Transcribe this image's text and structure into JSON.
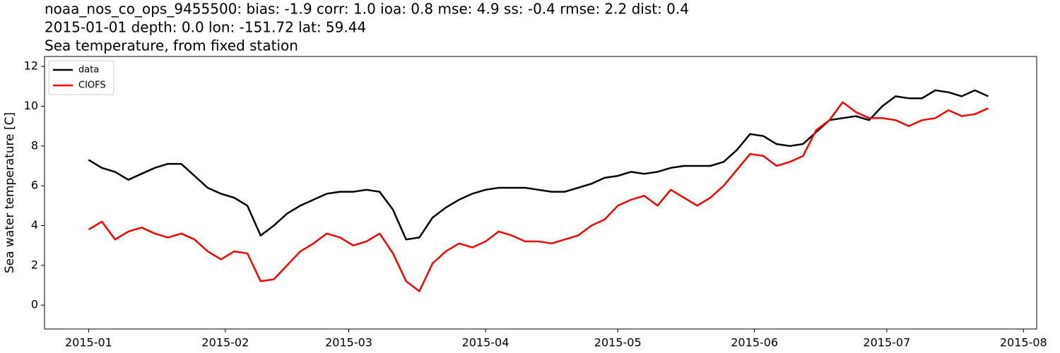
{
  "chart_data": {
    "type": "line",
    "title": "noaa_nos_co_ops_9455500: bias: -1.9  corr: 1.0  ioa: 0.8  mse: 4.9  ss: -0.4  rmse: 2.2  dist: 0.4",
    "subtitle": "2015-01-01 depth: 0.0 lon: -151.72 lat: 59.44",
    "subtitle2": "Sea temperature, from fixed station",
    "ylabel": "Sea water temperature [C]",
    "x": [
      "2015-01-01",
      "2015-01-04",
      "2015-01-07",
      "2015-01-10",
      "2015-01-13",
      "2015-01-16",
      "2015-01-19",
      "2015-01-22",
      "2015-01-25",
      "2015-01-28",
      "2015-01-31",
      "2015-02-03",
      "2015-02-06",
      "2015-02-09",
      "2015-02-12",
      "2015-02-15",
      "2015-02-18",
      "2015-02-21",
      "2015-02-24",
      "2015-02-27",
      "2015-03-02",
      "2015-03-05",
      "2015-03-08",
      "2015-03-11",
      "2015-03-14",
      "2015-03-17",
      "2015-03-20",
      "2015-03-23",
      "2015-03-26",
      "2015-03-29",
      "2015-04-01",
      "2015-04-04",
      "2015-04-07",
      "2015-04-10",
      "2015-04-13",
      "2015-04-16",
      "2015-04-19",
      "2015-04-22",
      "2015-04-25",
      "2015-04-28",
      "2015-05-01",
      "2015-05-04",
      "2015-05-07",
      "2015-05-10",
      "2015-05-13",
      "2015-05-16",
      "2015-05-19",
      "2015-05-22",
      "2015-05-25",
      "2015-05-28",
      "2015-05-31",
      "2015-06-03",
      "2015-06-06",
      "2015-06-09",
      "2015-06-12",
      "2015-06-15",
      "2015-06-18",
      "2015-06-21",
      "2015-06-24",
      "2015-06-27",
      "2015-06-30",
      "2015-07-03",
      "2015-07-06",
      "2015-07-09",
      "2015-07-12",
      "2015-07-15",
      "2015-07-18",
      "2015-07-21",
      "2015-07-24"
    ],
    "series": [
      {
        "name": "data",
        "color": "#000000",
        "values": [
          7.3,
          6.9,
          6.7,
          6.3,
          6.6,
          6.9,
          7.1,
          7.1,
          6.5,
          5.9,
          5.6,
          5.4,
          5.0,
          3.5,
          4.0,
          4.6,
          5.0,
          5.3,
          5.6,
          5.7,
          5.7,
          5.8,
          5.7,
          4.8,
          3.3,
          3.4,
          4.4,
          4.9,
          5.3,
          5.6,
          5.8,
          5.9,
          5.9,
          5.9,
          5.8,
          5.7,
          5.7,
          5.9,
          6.1,
          6.4,
          6.5,
          6.7,
          6.6,
          6.7,
          6.9,
          7.0,
          7.0,
          7.0,
          7.2,
          7.8,
          8.6,
          8.5,
          8.1,
          8.0,
          8.1,
          8.7,
          9.3,
          9.4,
          9.5,
          9.3,
          10.0,
          10.5,
          10.4,
          10.4,
          10.8,
          10.7,
          10.5,
          10.8,
          10.5
        ]
      },
      {
        "name": "CIOFS",
        "color": "#ff0000",
        "values": [
          3.8,
          4.2,
          3.3,
          3.7,
          3.9,
          3.6,
          3.4,
          3.6,
          3.3,
          2.7,
          2.3,
          2.7,
          2.6,
          1.2,
          1.3,
          2.0,
          2.7,
          3.1,
          3.6,
          3.4,
          3.0,
          3.2,
          3.6,
          2.6,
          1.2,
          0.7,
          2.1,
          2.7,
          3.1,
          2.9,
          3.2,
          3.7,
          3.5,
          3.2,
          3.2,
          3.1,
          3.3,
          3.5,
          4.0,
          4.3,
          5.0,
          5.3,
          5.5,
          5.0,
          5.8,
          5.4,
          5.0,
          5.4,
          6.0,
          6.8,
          7.6,
          7.5,
          7.0,
          7.2,
          7.5,
          8.8,
          9.3,
          10.2,
          9.7,
          9.4,
          9.4,
          9.3,
          9.0,
          9.3,
          9.4,
          9.8,
          9.5,
          9.6,
          9.9
        ]
      }
    ],
    "xlim": [
      "2014-12-22",
      "2015-08-04"
    ],
    "xticks": [
      {
        "value": "2015-01-01",
        "label": "2015-01"
      },
      {
        "value": "2015-02-01",
        "label": "2015-02"
      },
      {
        "value": "2015-03-01",
        "label": "2015-03"
      },
      {
        "value": "2015-04-01",
        "label": "2015-04"
      },
      {
        "value": "2015-05-01",
        "label": "2015-05"
      },
      {
        "value": "2015-06-01",
        "label": "2015-06"
      },
      {
        "value": "2015-07-01",
        "label": "2015-07"
      },
      {
        "value": "2015-08-01",
        "label": "2015-08"
      }
    ],
    "ylim": [
      -1.2,
      12.5
    ],
    "yticks": [
      0,
      2,
      4,
      6,
      8,
      10,
      12
    ],
    "grid": false,
    "legend": "upper left"
  }
}
